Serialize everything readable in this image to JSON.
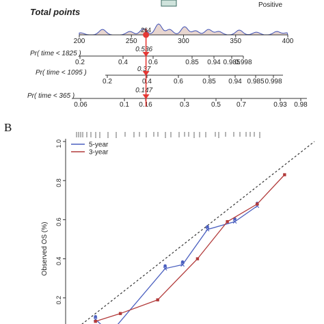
{
  "nomogram": {
    "legend_fragment": "Positive",
    "total_points": {
      "label": "Total points",
      "ticks": [
        "200",
        "250",
        "300",
        "350",
        "400"
      ],
      "tick_values": [
        200,
        250,
        300,
        350,
        400
      ],
      "range": [
        200,
        400
      ],
      "marker_value": "264",
      "marker_points": 264
    },
    "probabilities": [
      {
        "label": "Pr( time < 1825 )",
        "ticks": [
          "0.2",
          "0.4",
          "0.6",
          "0.85",
          "0.94",
          "0.985",
          "0.998"
        ],
        "highlight": "0.536"
      },
      {
        "label": "Pr( time < 1095 )",
        "ticks": [
          "0.2",
          "0.4",
          "0.6",
          "0.85",
          "0.94",
          "0.985",
          "0.998"
        ],
        "highlight": "0.37"
      },
      {
        "label": "Pr( time < 365 )",
        "ticks": [
          "0.06",
          "0.1",
          "0.16",
          "0.3",
          "0.5",
          "0.7",
          "0.93",
          "0.98"
        ],
        "highlight": "0.147"
      }
    ],
    "colors": {
      "marker": "#e53935",
      "density_fill": "#e8d6d0",
      "density_line": "#3f51b5"
    }
  },
  "panel_b": {
    "letter": "B"
  },
  "chart_data": {
    "type": "line",
    "title": "",
    "xlabel": "",
    "ylabel": "Observed OS (%)",
    "ylim": [
      0.0,
      1.0
    ],
    "yticks": [
      "0.2",
      "0.4",
      "0.6",
      "0.8",
      "1.0"
    ],
    "ytick_values": [
      0.2,
      0.4,
      0.6,
      0.8,
      1.0
    ],
    "xlim": [
      0.0,
      1.0
    ],
    "legend_placement": "top-left",
    "diagonal_reference": true,
    "series": [
      {
        "name": "5-year",
        "color": "#4a5fbf",
        "x": [
          0.12,
          0.18,
          0.4,
          0.47,
          0.57,
          0.68,
          0.77
        ],
        "y": [
          0.09,
          0.02,
          0.35,
          0.37,
          0.55,
          0.59,
          0.67
        ]
      },
      {
        "name": "3-year",
        "color": "#b23a3a",
        "x": [
          0.12,
          0.22,
          0.37,
          0.53,
          0.65,
          0.77,
          0.88
        ],
        "y": [
          0.08,
          0.12,
          0.19,
          0.4,
          0.59,
          0.68,
          0.83
        ]
      }
    ]
  }
}
